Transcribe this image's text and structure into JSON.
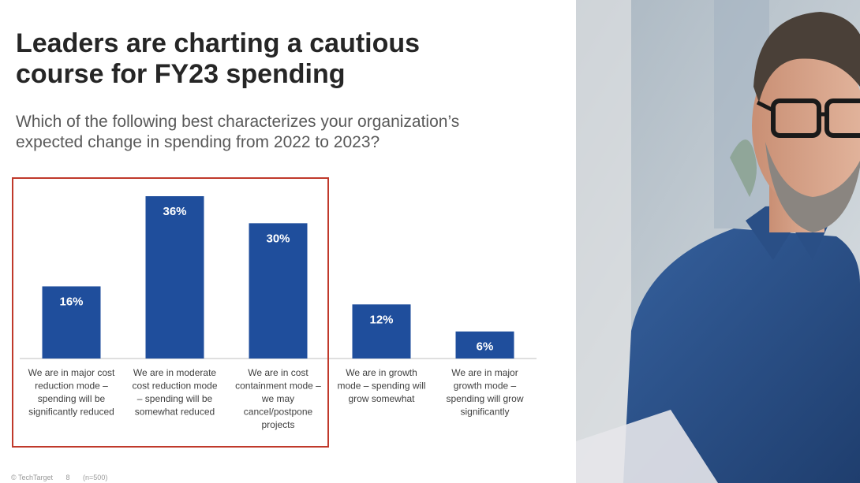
{
  "slide": {
    "title_lines": [
      "Leaders are charting a cautious",
      "course for FY23 spending"
    ],
    "subtitle_lines": [
      "Which of the following best characterizes your organization’s",
      "expected change in spending from 2022 to 2023?"
    ],
    "footer": [
      "© TechTarget",
      "8",
      "(n=500)"
    ]
  },
  "chart_data": {
    "type": "bar",
    "title": "Which of the following best characterizes your organization’s expected change in spending from 2022 to 2023?",
    "categories": [
      "We are in major cost reduction mode – spending will be significantly reduced",
      "We are in moderate cost reduction mode – spending will be somewhat reduced",
      "We are in cost containment mode – we may cancel/postpone projects",
      "We are in growth mode – spending will grow somewhat",
      "We are in major growth mode – spending will grow significantly"
    ],
    "category_lines": [
      [
        "We are in major cost",
        "reduction mode –",
        "spending will be",
        "significantly reduced"
      ],
      [
        "We are in moderate",
        "cost reduction mode",
        "– spending will be",
        "somewhat reduced"
      ],
      [
        "We are in cost",
        "containment mode –",
        "we may",
        "cancel/postpone",
        "projects"
      ],
      [
        "We are in growth",
        "mode – spending will",
        "grow somewhat"
      ],
      [
        "We are in major",
        "growth mode –",
        "spending will grow",
        "significantly"
      ]
    ],
    "values": [
      16,
      36,
      30,
      12,
      6
    ],
    "value_labels": [
      "16%",
      "36%",
      "30%",
      "12%",
      "6%"
    ],
    "unit": "%",
    "ylim": [
      0,
      36
    ],
    "grid": false,
    "highlighted_categories": [
      0,
      1,
      2
    ],
    "colors": {
      "bar": "#1f4e9c",
      "label": "#ffffff",
      "axis": "#bfbfbf",
      "highlight": "#c0392b"
    }
  },
  "photo": {
    "description_icon": "man-with-glasses-photo-icon",
    "colors": {
      "background": "#b9c4cc",
      "shirt": "#2a4f86",
      "skin": "#d9a58a"
    }
  }
}
